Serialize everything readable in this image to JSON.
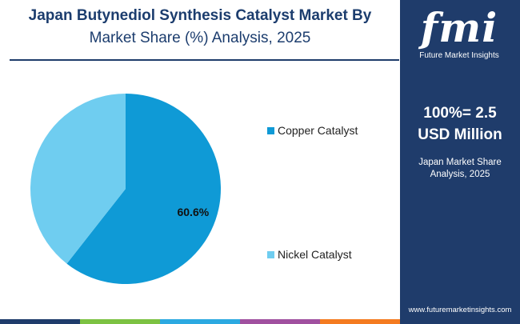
{
  "title_line1": "Japan Butynediol Synthesis Catalyst Market By",
  "title_line2": "Market Share (%) Analysis, 2025",
  "side_panel": {
    "logo_letters": "fmi",
    "logo_subtitle": "Future Market Insights",
    "total_line1": "100%= 2.5",
    "total_line2": "USD Million",
    "caption_line1": "Japan Market Share",
    "caption_line2": "Analysis, 2025",
    "website": "www.futuremarketinsights.com"
  },
  "chart_data": {
    "type": "pie",
    "categories": [
      "Copper Catalyst",
      "Nickel Catalyst"
    ],
    "values": [
      60.6,
      39.4
    ],
    "colors": [
      "#0f9ad6",
      "#6fcdf0"
    ],
    "data_labels": [
      "60.6%",
      ""
    ],
    "legend_position": "right"
  },
  "colors": {
    "navy": "#1f3c6b",
    "bottom_bar": [
      "#1f3c6b",
      "#7cc242",
      "#2ba9e1",
      "#a0509f",
      "#f47b20"
    ]
  }
}
